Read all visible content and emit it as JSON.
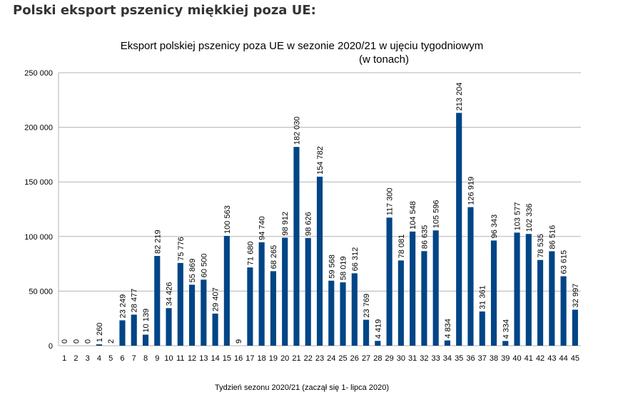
{
  "page": {
    "heading": "Polski eksport pszenicy miękkiej poza UE:"
  },
  "colors": {
    "bar": "#004586",
    "grid": "#b3b3b3",
    "text": "#000000"
  },
  "chart_data": {
    "type": "bar",
    "title_line1": "Eksport polskiej pszenicy poza UE w sezonie 2020/21 w ujęciu tygodniowym",
    "title_line2": "(w tonach)",
    "xlabel": "Tydzień sezonu 2020/21 (zaczął się 1- lipca 2020)",
    "ylabel": "",
    "ylim": [
      0,
      250000
    ],
    "yticks": [
      0,
      50000,
      100000,
      150000,
      200000,
      250000
    ],
    "ytick_labels": [
      "0",
      "50 000",
      "100 000",
      "150 000",
      "200 000",
      "250 000"
    ],
    "grid": true,
    "legend": "none",
    "categories": [
      "1",
      "2",
      "3",
      "4",
      "5",
      "6",
      "7",
      "8",
      "9",
      "10",
      "11",
      "12",
      "13",
      "14",
      "15",
      "16",
      "17",
      "18",
      "19",
      "20",
      "21",
      "22",
      "23",
      "24",
      "25",
      "26",
      "27",
      "28",
      "29",
      "30",
      "31",
      "32",
      "33",
      "34",
      "35",
      "36",
      "37",
      "38",
      "39",
      "40",
      "41",
      "42",
      "43",
      "44",
      "45"
    ],
    "values": [
      0,
      0,
      0,
      1260,
      2,
      23249,
      28477,
      10139,
      82219,
      34426,
      75776,
      55869,
      60500,
      29407,
      100563,
      9,
      71680,
      94740,
      68265,
      98912,
      182030,
      98626,
      154782,
      59568,
      58019,
      66312,
      23769,
      4419,
      117300,
      78081,
      104548,
      86635,
      105596,
      4834,
      213204,
      126919,
      31361,
      96343,
      4334,
      103577,
      102336,
      78535,
      86516,
      63615,
      32997
    ],
    "data_labels": [
      "0",
      "0",
      "0",
      "1 260",
      "2",
      "23 249",
      "28 477",
      "10 139",
      "82 219",
      "34 426",
      "75 776",
      "55 869",
      "60 500",
      "29 407",
      "100 563",
      "9",
      "71 680",
      "94 740",
      "68 265",
      "98 912",
      "182 030",
      "98 626",
      "154 782",
      "59 568",
      "58 019",
      "66 312",
      "23 769",
      "4 419",
      "117 300",
      "78 081",
      "104 548",
      "86 635",
      "105 596",
      "4 834",
      "213 204",
      "126 919",
      "31 361",
      "96 343",
      "4 334",
      "103 577",
      "102 336",
      "78 535",
      "86 516",
      "63 615",
      "32 997"
    ]
  }
}
